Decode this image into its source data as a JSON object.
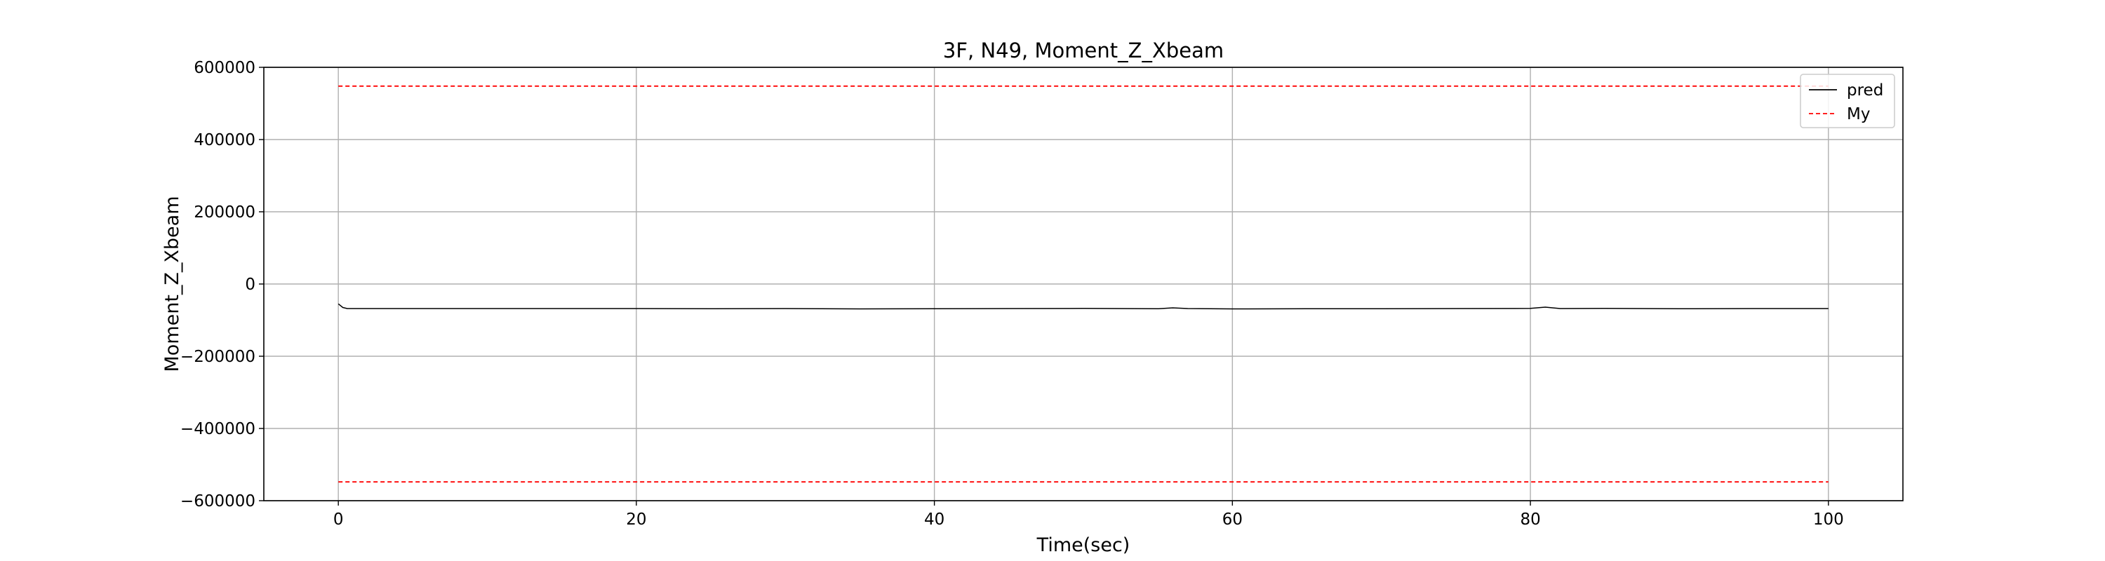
{
  "chart_data": {
    "type": "line",
    "title": "3F, N49, Moment_Z_Xbeam",
    "xlabel": "Time(sec)",
    "ylabel": "Moment_Z_Xbeam",
    "xlim": [
      -5,
      105
    ],
    "ylim": [
      -600000,
      600000
    ],
    "x_ticks": [
      0,
      20,
      40,
      60,
      80,
      100
    ],
    "y_ticks": [
      -600000,
      -400000,
      -200000,
      0,
      200000,
      400000,
      600000
    ],
    "x_tick_labels": [
      "0",
      "20",
      "40",
      "60",
      "80",
      "100"
    ],
    "y_tick_labels": [
      "−600000",
      "−400000",
      "−200000",
      "0",
      "200000",
      "400000",
      "600000"
    ],
    "grid": true,
    "legend_position": "top-right",
    "series": [
      {
        "name": "pred",
        "color": "#000000",
        "style": "solid",
        "x": [
          0,
          0.3,
          0.6,
          1,
          5,
          10,
          15,
          20,
          25,
          30,
          35,
          40,
          45,
          50,
          55,
          56,
          57,
          60,
          65,
          70,
          75,
          80,
          81,
          82,
          85,
          90,
          95,
          100
        ],
        "y": [
          -55000,
          -65000,
          -68000,
          -68000,
          -68000,
          -68000,
          -68000,
          -68000,
          -68500,
          -68000,
          -69000,
          -68500,
          -68000,
          -67500,
          -68500,
          -66000,
          -68000,
          -69000,
          -68500,
          -68500,
          -68000,
          -67500,
          -64000,
          -68000,
          -67500,
          -68500,
          -68000,
          -68000
        ]
      },
      {
        "name": "My",
        "color": "#ff0000",
        "style": "dashed",
        "x": [
          0,
          100
        ],
        "y": [
          548000,
          548000
        ]
      },
      {
        "name": "",
        "color": "#ff0000",
        "style": "dashed",
        "x": [
          0,
          100
        ],
        "y": [
          -548000,
          -548000
        ]
      }
    ]
  }
}
